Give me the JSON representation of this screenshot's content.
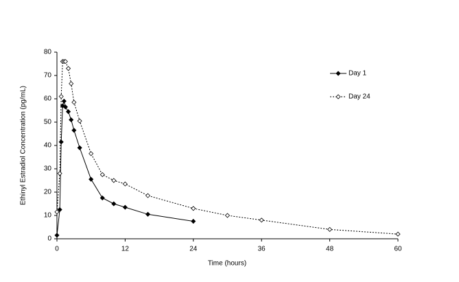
{
  "chart_data": {
    "type": "line",
    "x_label": "Time (hours)",
    "y_label": "Ethinyl Estradiol Concentration (pg/mL)",
    "xlim": [
      0,
      60
    ],
    "xticks": [
      0,
      12,
      24,
      36,
      48,
      60
    ],
    "ylim": [
      0,
      80
    ],
    "yticks": [
      0,
      10,
      20,
      30,
      40,
      50,
      60,
      70,
      80
    ],
    "grid": false,
    "legend": "upper right",
    "series": [
      {
        "name": "Day 1",
        "color": "#000000",
        "line_style": "solid",
        "marker_fill": "#000000",
        "x": [
          0,
          0.5,
          0.75,
          1,
          1.25,
          1.5,
          2,
          2.5,
          3,
          4,
          6,
          8,
          10,
          12,
          16,
          24
        ],
        "values": [
          1.5,
          12.5,
          41.5,
          57,
          59,
          56.5,
          54.5,
          51,
          46.5,
          39,
          25.5,
          17.5,
          15,
          13.5,
          10.5,
          7.5
        ]
      },
      {
        "name": "Day 24",
        "color": "#000000",
        "line_style": "dotted",
        "marker_fill": "#ffffff",
        "x": [
          0,
          0.5,
          0.75,
          1,
          1.25,
          1.5,
          2,
          2.5,
          3,
          4,
          6,
          8,
          10,
          12,
          16,
          24,
          30,
          36,
          48,
          60
        ],
        "values": [
          11.5,
          28,
          61,
          76,
          76,
          76,
          73,
          66.5,
          58.5,
          50.5,
          36.5,
          27.5,
          25,
          23.5,
          18.5,
          13,
          10,
          8,
          4,
          2
        ]
      }
    ]
  }
}
